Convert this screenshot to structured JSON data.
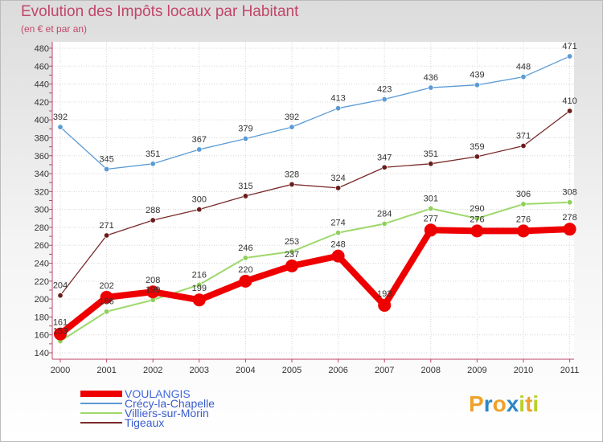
{
  "title": "Evolution des Impôts locaux par Habitant",
  "subtitle": "(en € et par an)",
  "brand": {
    "letters": [
      "P",
      "r",
      "o",
      "x",
      "i",
      "t",
      "i"
    ],
    "colors": [
      "#f0a12a",
      "#2d87c4",
      "#f0a12a",
      "#2d87c4",
      "#b8cf2a",
      "#f0a12a",
      "#b8cf2a"
    ]
  },
  "chart_data": {
    "type": "line",
    "title": "Evolution des Impôts locaux par Habitant",
    "ylabel": "(en € et par an)",
    "xlabel": "",
    "categories": [
      "2000",
      "2001",
      "2002",
      "2003",
      "2004",
      "2005",
      "2006",
      "2007",
      "2008",
      "2009",
      "2010",
      "2011"
    ],
    "ylim": [
      140,
      480
    ],
    "yticks": [
      140,
      160,
      180,
      200,
      220,
      240,
      260,
      280,
      300,
      320,
      340,
      360,
      380,
      400,
      420,
      440,
      460,
      480
    ],
    "series": [
      {
        "name": "VOULANGIS",
        "color": "#ee0000",
        "values": [
          161,
          202,
          208,
          199,
          220,
          237,
          248,
          193,
          277,
          276,
          276,
          278
        ]
      },
      {
        "name": "Crécy-la-Chapelle",
        "color": "#5b9bd5",
        "values": [
          392,
          345,
          351,
          367,
          379,
          392,
          413,
          423,
          436,
          439,
          448,
          471
        ]
      },
      {
        "name": "Villiers-sur-Morin",
        "color": "#9ed86b",
        "values": [
          153,
          186,
          199,
          216,
          246,
          253,
          274,
          284,
          301,
          290,
          306,
          308
        ]
      },
      {
        "name": "Tigeaux",
        "color": "#7a2a2a",
        "values": [
          204,
          271,
          288,
          300,
          315,
          328,
          324,
          347,
          351,
          359,
          371,
          410
        ]
      }
    ]
  }
}
